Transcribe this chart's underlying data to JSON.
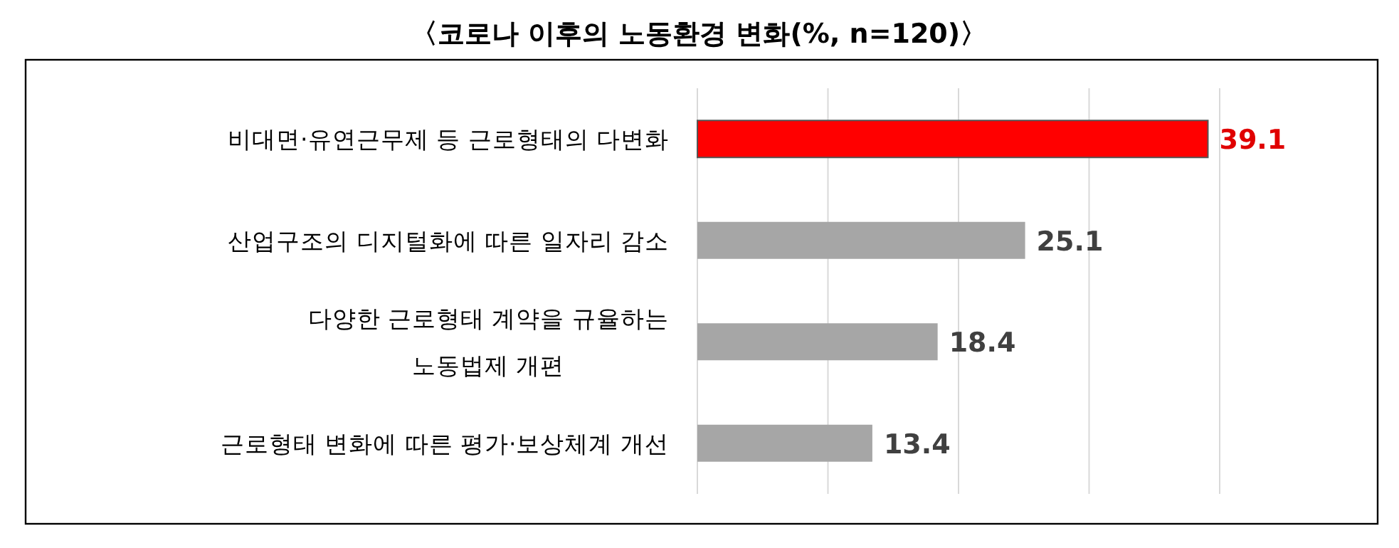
{
  "chart_data": {
    "type": "bar",
    "orientation": "horizontal",
    "title": "〈코로나 이후의 노동환경 변화(%, n=120)〉",
    "categories": [
      "비대면·유연근무제 등 근로형태의 다변화",
      "산업구조의 디지털화에 따른 일자리 감소",
      "다양한 근로형태 계약을 규율하는\n노동법제 개편",
      "근로형태 변화에 따른 평가·보상체계 개선"
    ],
    "values": [
      39.1,
      25.1,
      18.4,
      13.4
    ],
    "colors": [
      "#ff0000",
      "#a6a6a6",
      "#a6a6a6",
      "#a6a6a6"
    ],
    "xlim": [
      0,
      40
    ],
    "xticks": [
      {
        "value": 0,
        "label": null
      },
      {
        "value": 10,
        "label": null
      },
      {
        "value": 20,
        "label": null
      },
      {
        "value": 30,
        "label": null
      },
      {
        "value": 40,
        "label": null
      }
    ],
    "grid": "x",
    "data_labels": true,
    "tick_labels": "y"
  }
}
